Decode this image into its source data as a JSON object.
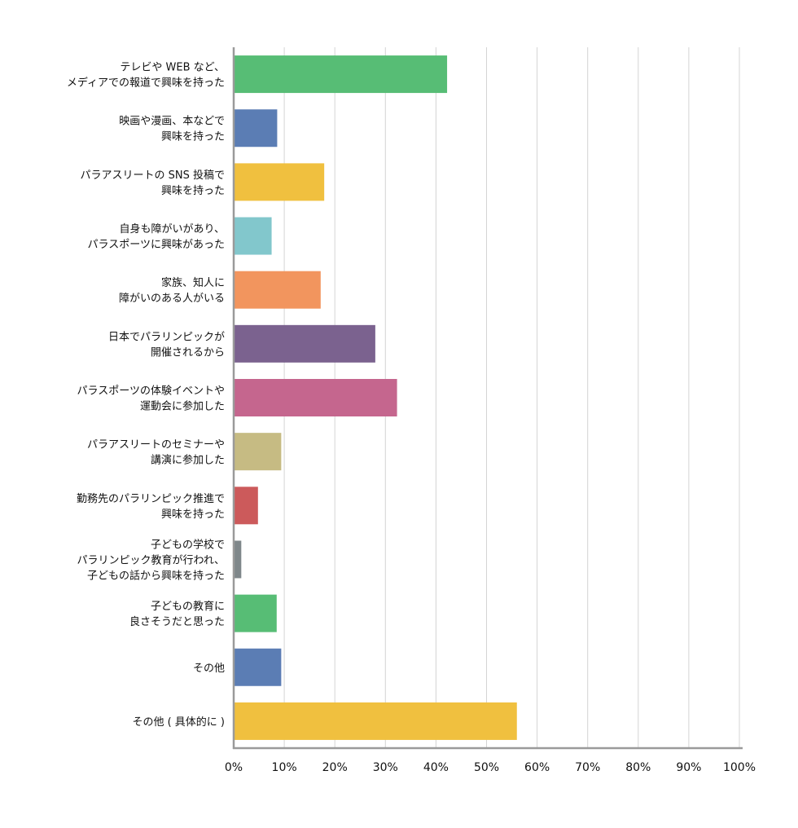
{
  "chart_data": {
    "type": "bar",
    "orientation": "horizontal",
    "title": "",
    "xlabel": "",
    "ylabel": "",
    "xlim": [
      0,
      100
    ],
    "x_ticks": [
      "0%",
      "10%",
      "20%",
      "30%",
      "40%",
      "50%",
      "60%",
      "70%",
      "80%",
      "90%",
      "100%"
    ],
    "grid": true,
    "categories": [
      [
        "テレビや WEB など、",
        "メディアでの報道で興味を持った"
      ],
      [
        "映画や漫画、本などで",
        "興味を持った"
      ],
      [
        "パラアスリートの SNS 投稿で",
        "興味を持った"
      ],
      [
        "自身も障がいがあり、",
        "パラスポーツに興味があった"
      ],
      [
        "家族、知人に",
        "障がいのある人がいる"
      ],
      [
        "日本でパラリンピックが",
        "開催されるから"
      ],
      [
        "パラスポーツの体験イベントや",
        "運動会に参加した"
      ],
      [
        "パラアスリートのセミナーや",
        "講演に参加した"
      ],
      [
        "勤務先のパラリンピック推進で",
        "興味を持った"
      ],
      [
        "子どもの学校で",
        "パラリンピック教育が行われ、",
        "子どもの話から興味を持った"
      ],
      [
        "子どもの教育に",
        "良さそうだと思った"
      ],
      [
        "その他"
      ],
      [
        "その他 ( 具体的に )"
      ]
    ],
    "values": [
      42.2,
      8.6,
      17.9,
      7.5,
      17.2,
      28.0,
      32.3,
      9.4,
      4.8,
      1.5,
      8.5,
      9.4,
      56.0
    ],
    "colors": [
      "#57bd75",
      "#5b7db4",
      "#f0c03f",
      "#82c7cc",
      "#f2955e",
      "#7b628f",
      "#c5668e",
      "#c6bb83",
      "#cc5a5b",
      "#7f878a",
      "#57bd75",
      "#5b7db4",
      "#f0c03f"
    ]
  }
}
